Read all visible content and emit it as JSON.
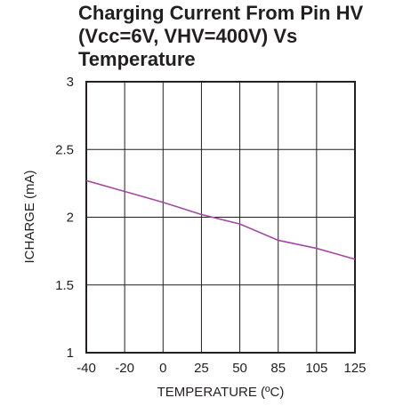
{
  "chart_data": {
    "type": "line",
    "title": "Charging Current From Pin HV (Vcc=6V, VHV=400V)  Vs Temperature",
    "xlabel": "TEMPERATURE (ºC)",
    "ylabel": "ICHARGE (mA)",
    "categories": [
      "-40",
      "-20",
      "0",
      "25",
      "50",
      "85",
      "105",
      "125"
    ],
    "ylim": [
      1,
      3
    ],
    "yticks": [
      "1",
      "1.5",
      "2",
      "2.5",
      "3"
    ],
    "grid": true,
    "series": [
      {
        "values": [
          2.27,
          2.19,
          2.11,
          2.02,
          1.95,
          1.83,
          1.77,
          1.69
        ]
      }
    ],
    "colors": {
      "line": "#a349a4",
      "grid": "#231f20",
      "text": "#231f20"
    }
  }
}
